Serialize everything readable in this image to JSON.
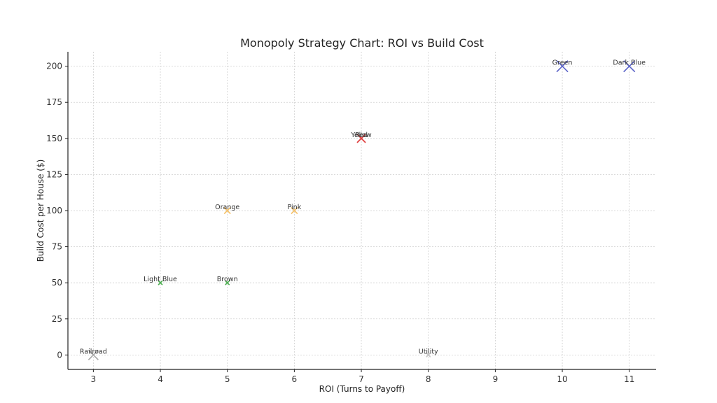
{
  "chart_data": {
    "type": "scatter",
    "title": "Monopoly Strategy Chart: ROI vs Build Cost",
    "xlabel": "ROI (Turns to Payoff)",
    "ylabel": "Build Cost per House ($)",
    "xlim": [
      2.62,
      11.4
    ],
    "ylim": [
      -10,
      210
    ],
    "xticks": [
      3,
      4,
      5,
      6,
      7,
      8,
      9,
      10,
      11
    ],
    "yticks": [
      0,
      25,
      50,
      75,
      100,
      125,
      150,
      175,
      200
    ],
    "grid": true,
    "marker": "x",
    "points": [
      {
        "label": "Railroad",
        "x": 3,
        "y": 0,
        "color": "#a8a8a8",
        "size": 14
      },
      {
        "label": "Light Blue",
        "x": 4,
        "y": 50,
        "color": "#4caf50",
        "size": 6
      },
      {
        "label": "Brown",
        "x": 5,
        "y": 50,
        "color": "#4caf50",
        "size": 6
      },
      {
        "label": "Orange",
        "x": 5,
        "y": 100,
        "color": "#f5c26b",
        "size": 9
      },
      {
        "label": "Pink",
        "x": 6,
        "y": 100,
        "color": "#f5c26b",
        "size": 9
      },
      {
        "label": "Yellow",
        "x": 7,
        "y": 150,
        "color": "#e04040",
        "size": 12
      },
      {
        "label": "Red",
        "x": 7,
        "y": 150,
        "color": "#e04040",
        "size": 12
      },
      {
        "label": "Green",
        "x": 10,
        "y": 200,
        "color": "#5b63c8",
        "size": 16
      },
      {
        "label": "Dark Blue",
        "x": 11,
        "y": 200,
        "color": "#5b63c8",
        "size": 16
      },
      {
        "label": "Utility",
        "x": 8,
        "y": 0,
        "color": "#c8c8c8",
        "size": 6
      }
    ]
  }
}
